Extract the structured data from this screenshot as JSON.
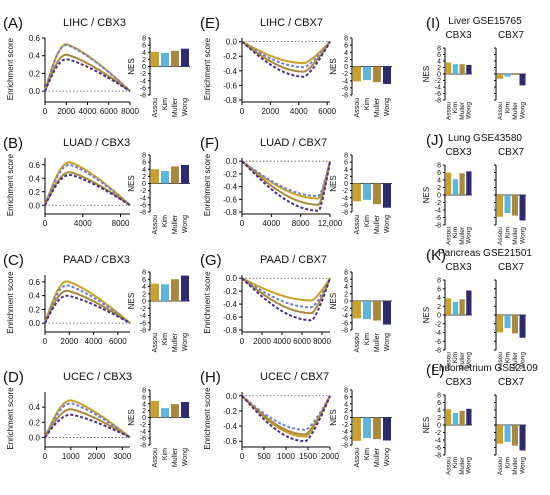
{
  "figure": {
    "colors": {
      "Assou": "#c9a227",
      "Kim": "#5bb5dc",
      "Muller": "#a98a3c",
      "Wong": "#2e2a6f",
      "blue_line": "#6f7fd6",
      "purple_line": "#4a2f85"
    },
    "gsea_ylabel": "Enrichment score",
    "nes_ylabel": "NES",
    "nes_groups": [
      "Assou",
      "Kim",
      "Muller",
      "Wong"
    ],
    "nes_yticks": [
      "8",
      "6",
      "4",
      "2",
      "0",
      "-2",
      "-4",
      "-6",
      "-8"
    ]
  },
  "chart_data": [
    {
      "type": "line",
      "panel": "(A)",
      "title": "LIHC / CBX3",
      "xlabel": "",
      "ylabel": "Enrichment score",
      "xlim": [
        0,
        8000
      ],
      "ylim": [
        -0.1,
        0.6
      ],
      "xticks": [
        "0",
        "2000",
        "4000",
        "6000",
        "8000"
      ],
      "yticks": [
        "0.6",
        "0.4",
        "0.2",
        "0.0"
      ],
      "peak_x": 2000,
      "series": [
        {
          "name": "Assou",
          "peak": 0.54
        },
        {
          "name": "Kim",
          "peak": 0.52
        },
        {
          "name": "Muller",
          "peak": 0.42
        },
        {
          "name": "Wong",
          "peak": 0.36
        }
      ],
      "nes": [
        4.1,
        3.8,
        4.4,
        5.0
      ]
    },
    {
      "type": "line",
      "panel": "(B)",
      "title": "LUAD / CBX3",
      "xlabel": "",
      "ylabel": "Enrichment score",
      "xlim": [
        0,
        9000
      ],
      "ylim": [
        -0.1,
        0.7
      ],
      "xticks": [
        "0",
        "4000",
        "8000"
      ],
      "yticks": [
        "0.6",
        "0.4",
        "0.2",
        "0.0"
      ],
      "peak_x": 2600,
      "series": [
        {
          "name": "Assou",
          "peak": 0.65
        },
        {
          "name": "Kim",
          "peak": 0.6
        },
        {
          "name": "Muller",
          "peak": 0.5
        },
        {
          "name": "Wong",
          "peak": 0.45
        }
      ],
      "nes": [
        4.0,
        3.5,
        4.8,
        5.2
      ]
    },
    {
      "type": "line",
      "panel": "(C)",
      "title": "PAAD / CBX3",
      "xlabel": "",
      "ylabel": "Enrichment score",
      "xlim": [
        0,
        7000
      ],
      "ylim": [
        -0.1,
        0.7
      ],
      "xticks": [
        "0",
        "2000",
        "4000",
        "6000"
      ],
      "yticks": [
        "0.6",
        "0.4",
        "0.2",
        "0.0"
      ],
      "peak_x": 1800,
      "series": [
        {
          "name": "Assou",
          "peak": 0.62
        },
        {
          "name": "Kim",
          "peak": 0.55
        },
        {
          "name": "Muller",
          "peak": 0.48
        },
        {
          "name": "Wong",
          "peak": 0.4
        }
      ],
      "nes": [
        4.8,
        4.6,
        6.0,
        7.0
      ]
    },
    {
      "type": "line",
      "panel": "(D)",
      "title": "UCEC / CBX3",
      "xlabel": "",
      "ylabel": "Enrichment score",
      "xlim": [
        0,
        3300
      ],
      "ylim": [
        -0.1,
        0.6
      ],
      "xticks": [
        "0",
        "1000",
        "2000",
        "3000"
      ],
      "yticks": [
        "0.4",
        "0.2",
        "0.0"
      ],
      "peak_x": 1000,
      "series": [
        {
          "name": "Assou",
          "peak": 0.5
        },
        {
          "name": "Kim",
          "peak": 0.45
        },
        {
          "name": "Muller",
          "peak": 0.38
        },
        {
          "name": "Wong",
          "peak": 0.3
        }
      ],
      "nes": [
        4.8,
        2.7,
        3.9,
        4.5
      ]
    },
    {
      "type": "line",
      "panel": "(E)",
      "title": "LIHC / CBX7",
      "xlabel": "",
      "ylabel": "Enrichment score",
      "xlim": [
        0,
        6200
      ],
      "ylim": [
        -0.8,
        0.05
      ],
      "xticks": [
        "0",
        "2000",
        "4000",
        "6000"
      ],
      "yticks": [
        "0.0",
        "-0.2",
        "-0.4",
        "-0.6",
        "-0.8"
      ],
      "peak_x": 4400,
      "series": [
        {
          "name": "Assou",
          "peak": -0.3
        },
        {
          "name": "Kim",
          "peak": -0.35
        },
        {
          "name": "Muller",
          "peak": -0.42
        },
        {
          "name": "Wong",
          "peak": -0.48
        }
      ],
      "nes": [
        -4.2,
        -3.8,
        -4.4,
        -4.9
      ]
    },
    {
      "type": "line",
      "panel": "(F)",
      "title": "LUAD / CBX7",
      "xlabel": "",
      "ylabel": "Enrichment score",
      "xlim": [
        0,
        12000
      ],
      "ylim": [
        -0.8,
        0.05
      ],
      "xticks": [
        "0",
        "4000",
        "8000",
        "12,000"
      ],
      "yticks": [
        "0.0",
        "-0.2",
        "-0.4",
        "-0.6",
        "-0.8"
      ],
      "peak_x": 10500,
      "series": [
        {
          "name": "Assou",
          "peak": -0.6
        },
        {
          "name": "Kim",
          "peak": -0.55
        },
        {
          "name": "Muller",
          "peak": -0.7
        },
        {
          "name": "Wong",
          "peak": -0.78
        }
      ],
      "nes": [
        -5.0,
        -4.6,
        -5.8,
        -6.8
      ]
    },
    {
      "type": "line",
      "panel": "(G)",
      "title": "PAAD / CBX7",
      "xlabel": "",
      "ylabel": "Enrichment score",
      "xlim": [
        0,
        8800
      ],
      "ylim": [
        -0.8,
        0.05
      ],
      "xticks": [
        "0",
        "2000",
        "4000",
        "6000",
        "8000"
      ],
      "yticks": [
        "0.0",
        "-0.2",
        "-0.4",
        "-0.6",
        "-0.8"
      ],
      "peak_x": 7000,
      "series": [
        {
          "name": "Assou",
          "peak": -0.35
        },
        {
          "name": "Kim",
          "peak": -0.45
        },
        {
          "name": "Muller",
          "peak": -0.55
        },
        {
          "name": "Wong",
          "peak": -0.65
        }
      ],
      "nes": [
        -4.8,
        -5.0,
        -5.4,
        -6.5
      ]
    },
    {
      "type": "line",
      "panel": "(H)",
      "title": "UCEC / CBX7",
      "xlabel": "",
      "ylabel": "Enrichment score",
      "xlim": [
        0,
        2000
      ],
      "ylim": [
        -0.65,
        0.05
      ],
      "xticks": [
        "0",
        "500",
        "1000",
        "1500",
        "2000"
      ],
      "yticks": [
        "0.0",
        "-0.2",
        "-0.4",
        "-0.6"
      ],
      "peak_x": 1450,
      "series": [
        {
          "name": "Assou",
          "peak": -0.55
        },
        {
          "name": "Kim",
          "peak": -0.45
        },
        {
          "name": "Muller",
          "peak": -0.52
        },
        {
          "name": "Wong",
          "peak": -0.6
        }
      ],
      "nes": [
        -6.8,
        -6.0,
        -6.3,
        -6.7
      ]
    },
    {
      "type": "bar",
      "panel": "(I)",
      "title": "Liver GSE15765",
      "groups": [
        "CBX3",
        "CBX7"
      ],
      "categories": [
        "Assou",
        "Kim",
        "Muller",
        "Wong"
      ],
      "ylabel": "NES",
      "ylim": [
        -8,
        8
      ],
      "series": [
        {
          "name": "CBX3",
          "values": [
            3.5,
            3.0,
            3.0,
            2.8
          ]
        },
        {
          "name": "CBX7",
          "values": [
            -1.5,
            -0.8,
            -0.3,
            -3.5
          ]
        }
      ]
    },
    {
      "type": "bar",
      "panel": "(J)",
      "title": "Lung GSE43580",
      "groups": [
        "CBX3",
        "CBX7"
      ],
      "categories": [
        "Assou",
        "Kim",
        "Muller",
        "Wong"
      ],
      "ylabel": "NES",
      "ylim": [
        -8,
        8
      ],
      "series": [
        {
          "name": "CBX3",
          "values": [
            6.0,
            4.2,
            5.8,
            6.3
          ]
        },
        {
          "name": "CBX7",
          "values": [
            -5.8,
            -4.8,
            -5.5,
            -6.8
          ]
        }
      ]
    },
    {
      "type": "bar",
      "panel": "(K)",
      "title": "Pancreas GSE21501",
      "groups": [
        "CBX3",
        "CBX7"
      ],
      "categories": [
        "Assou",
        "Kim",
        "Muller",
        "Wong"
      ],
      "ylabel": "NES",
      "ylim": [
        -8,
        8
      ],
      "series": [
        {
          "name": "CBX3",
          "values": [
            3.8,
            3.0,
            3.6,
            5.6
          ]
        },
        {
          "name": "CBX7",
          "values": [
            -4.0,
            -3.0,
            -4.2,
            -5.2
          ]
        }
      ]
    },
    {
      "type": "bar",
      "panel": "(L)",
      "title": "Endometrium GSE2109",
      "groups": [
        "CBX3",
        "CBX7"
      ],
      "categories": [
        "Assou",
        "Kim",
        "Muller",
        "Wong"
      ],
      "ylabel": "NES",
      "ylim": [
        -8,
        8
      ],
      "series": [
        {
          "name": "CBX3",
          "values": [
            4.2,
            3.2,
            3.8,
            4.3
          ]
        },
        {
          "name": "CBX7",
          "values": [
            -5.0,
            -4.5,
            -5.5,
            -6.8
          ]
        }
      ]
    }
  ]
}
